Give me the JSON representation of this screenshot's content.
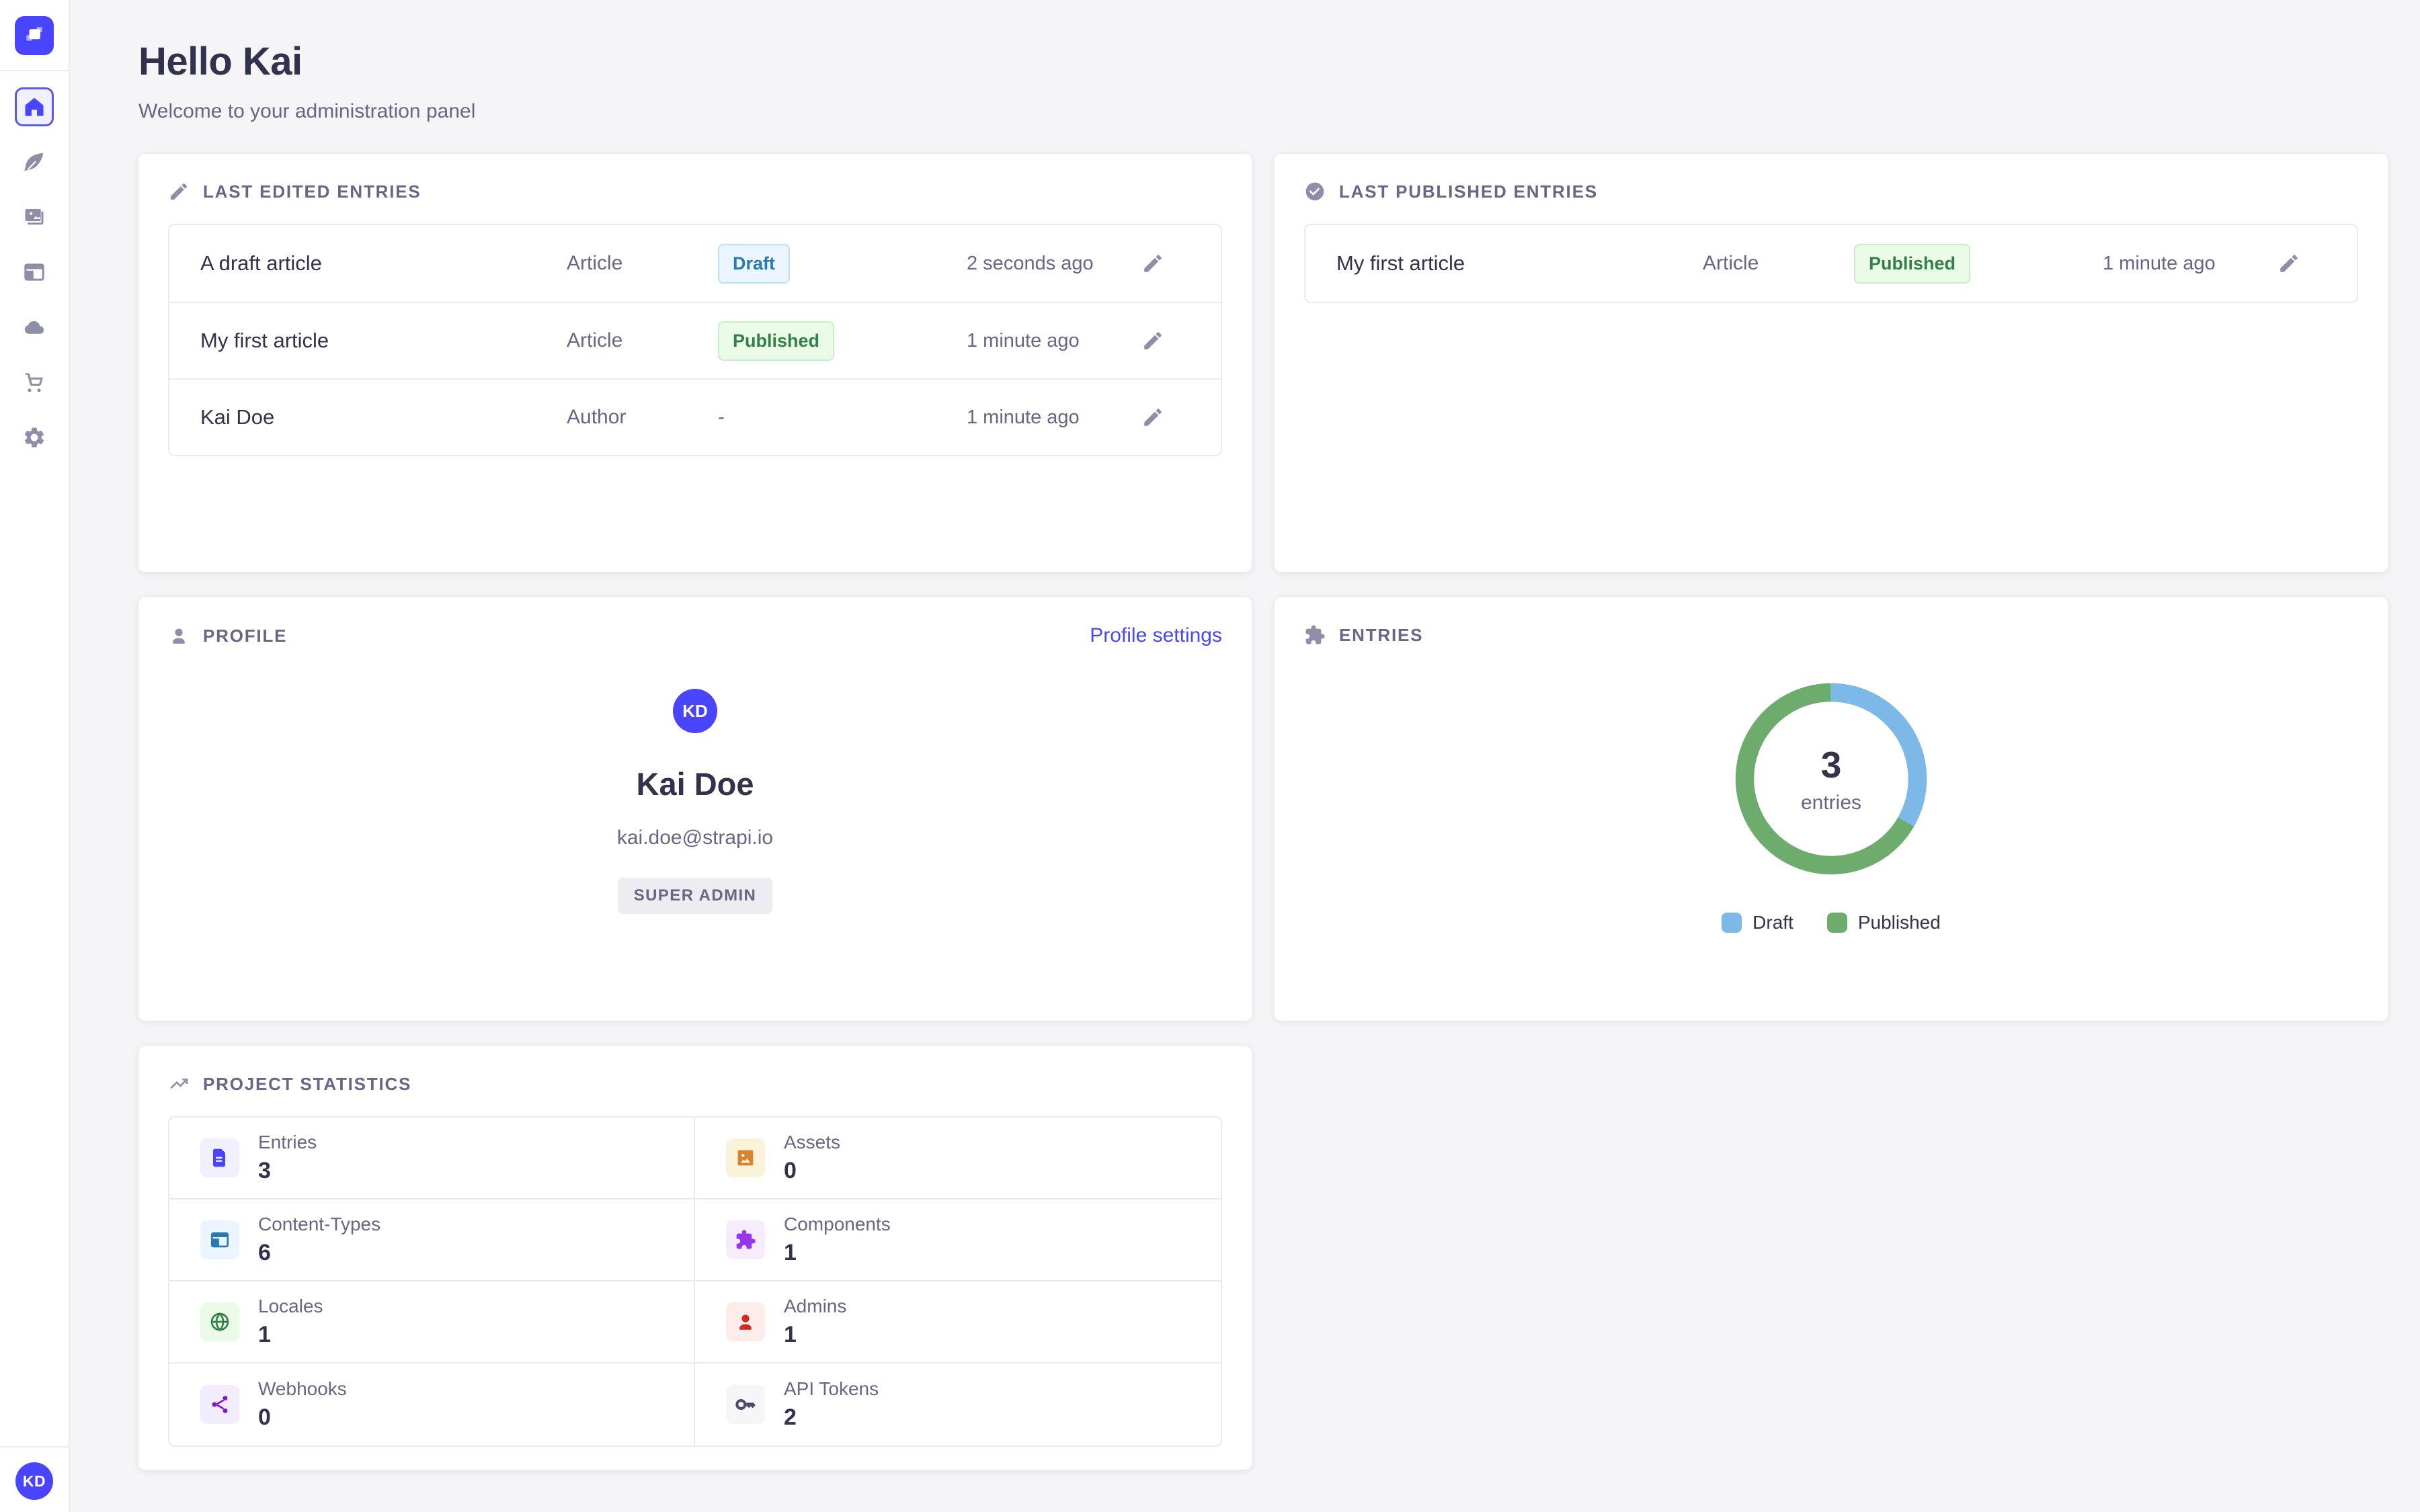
{
  "colors": {
    "accent": "#4945ff",
    "page_background": "#f5f5f8",
    "card_background": "#ffffff",
    "border": "#eaeaef",
    "text_dark": "#32324d",
    "text_muted": "#666687",
    "icon_gray": "#8e8ea9",
    "draft_badge": {
      "bg": "#eaf5ff",
      "border": "#b8e1ff",
      "text": "#2a7ab0"
    },
    "published_badge": {
      "bg": "#eafbe7",
      "border": "#c6f0c2",
      "text": "#328048"
    }
  },
  "sidebar": {
    "logo_icon": "strapi-logo",
    "items": [
      {
        "icon": "home-icon",
        "active": true
      },
      {
        "icon": "feather-icon",
        "active": false
      },
      {
        "icon": "media-images-icon",
        "active": false
      },
      {
        "icon": "layout-icon",
        "active": false
      },
      {
        "icon": "cloud-icon",
        "active": false
      },
      {
        "icon": "cart-icon",
        "active": false
      },
      {
        "icon": "gear-icon",
        "active": false
      }
    ],
    "avatar_initials": "KD"
  },
  "header": {
    "title": "Hello Kai",
    "subtitle": "Welcome to your administration panel"
  },
  "cards": {
    "last_edited": {
      "title": "LAST EDITED ENTRIES",
      "icon": "pencil-icon",
      "rows": [
        {
          "name": "A draft article",
          "kind": "Article",
          "status": "Draft",
          "status_type": "draft",
          "time": "2 seconds ago"
        },
        {
          "name": "My first article",
          "kind": "Article",
          "status": "Published",
          "status_type": "published",
          "time": "1 minute ago"
        },
        {
          "name": "Kai Doe",
          "kind": "Author",
          "status": "-",
          "status_type": "none",
          "time": "1 minute ago"
        }
      ]
    },
    "last_published": {
      "title": "LAST PUBLISHED ENTRIES",
      "icon": "check-circle-icon",
      "rows": [
        {
          "name": "My first article",
          "kind": "Article",
          "status": "Published",
          "status_type": "published",
          "time": "1 minute ago"
        }
      ]
    },
    "profile": {
      "title": "PROFILE",
      "icon": "person-icon",
      "link_label": "Profile settings",
      "initials": "KD",
      "name": "Kai Doe",
      "email": "kai.doe@strapi.io",
      "role": "SUPER ADMIN"
    },
    "entries": {
      "title": "ENTRIES",
      "icon": "puzzle-icon"
    },
    "stats": {
      "title": "PROJECT STATISTICS",
      "icon": "trend-up-icon",
      "items": [
        {
          "label": "Entries",
          "value": "3",
          "icon": "document",
          "tint": "#f0f0ff",
          "color": "#4945ff"
        },
        {
          "label": "Assets",
          "value": "0",
          "icon": "image",
          "tint": "#fbf3d9",
          "color": "#d9822f"
        },
        {
          "label": "Content-Types",
          "value": "6",
          "icon": "layout",
          "tint": "#eaf5ff",
          "color": "#2a7ab0"
        },
        {
          "label": "Components",
          "value": "1",
          "icon": "puzzle",
          "tint": "#f6ecfc",
          "color": "#9736e8"
        },
        {
          "label": "Locales",
          "value": "1",
          "icon": "globe",
          "tint": "#eafbe7",
          "color": "#328048"
        },
        {
          "label": "Admins",
          "value": "1",
          "icon": "person",
          "tint": "#fcecea",
          "color": "#d02b20"
        },
        {
          "label": "Webhooks",
          "value": "0",
          "icon": "webhook",
          "tint": "#f3ebfe",
          "color": "#8312d1"
        },
        {
          "label": "API Tokens",
          "value": "2",
          "icon": "key",
          "tint": "#f6f6f9",
          "color": "#4a4a6a"
        }
      ]
    }
  },
  "chart_data": {
    "type": "pie",
    "title": "Entries",
    "center_value": "3",
    "center_label": "entries",
    "legend_position": "bottom",
    "slices": [
      {
        "label": "Draft",
        "value": 1,
        "color": "#7db9e8"
      },
      {
        "label": "Published",
        "value": 2,
        "color": "#6eac6e"
      }
    ]
  }
}
